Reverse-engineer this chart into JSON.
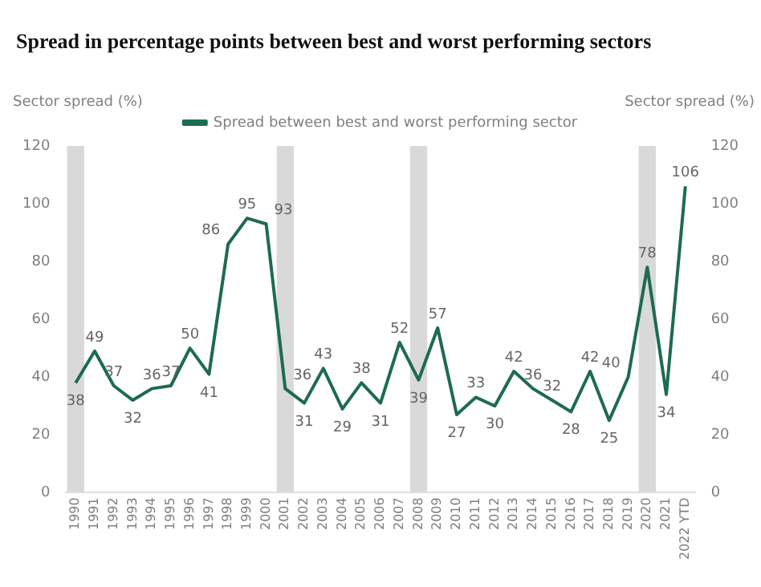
{
  "chart_data": {
    "type": "line",
    "title": "Spread in percentage points between best and worst performing sectors",
    "ylabel": "Sector spread (%)",
    "y2label": "Sector spread (%)",
    "categories": [
      "1990",
      "1991",
      "1992",
      "1993",
      "1994",
      "1995",
      "1996",
      "1997",
      "1998",
      "1999",
      "2000",
      "2001",
      "2002",
      "2003",
      "2004",
      "2005",
      "2006",
      "2007",
      "2008",
      "2009",
      "2010",
      "2011",
      "2012",
      "2013",
      "2014",
      "2015",
      "2016",
      "2017",
      "2018",
      "2019",
      "2020",
      "2021",
      "2022 YTD"
    ],
    "series": [
      {
        "name": "Spread between best and worst performing sector",
        "color": "#1e6b4f",
        "values": [
          38,
          49,
          37,
          32,
          36,
          37,
          50,
          41,
          86,
          95,
          93,
          36,
          31,
          43,
          29,
          38,
          31,
          52,
          39,
          57,
          27,
          33,
          30,
          42,
          36,
          32,
          28,
          42,
          25,
          40,
          78,
          34,
          106
        ]
      }
    ],
    "ylim": [
      0,
      120
    ],
    "yticks": [
      0,
      20,
      40,
      60,
      80,
      100,
      120
    ],
    "y2lim": [
      0,
      120
    ],
    "y2ticks": [
      0,
      20,
      40,
      60,
      80,
      100,
      120
    ],
    "bands": [
      {
        "axis": "x",
        "from": "1990",
        "to": "1990",
        "color": "#d9d9d9"
      },
      {
        "axis": "x",
        "from": "2001",
        "to": "2001",
        "color": "#d9d9d9"
      },
      {
        "axis": "x",
        "from": "2008",
        "to": "2008",
        "color": "#d9d9d9"
      },
      {
        "axis": "x",
        "from": "2020",
        "to": "2020",
        "color": "#d9d9d9"
      }
    ],
    "data_labels": true,
    "grid": false,
    "legend": "top",
    "marker": "none",
    "line_style": "solid"
  }
}
